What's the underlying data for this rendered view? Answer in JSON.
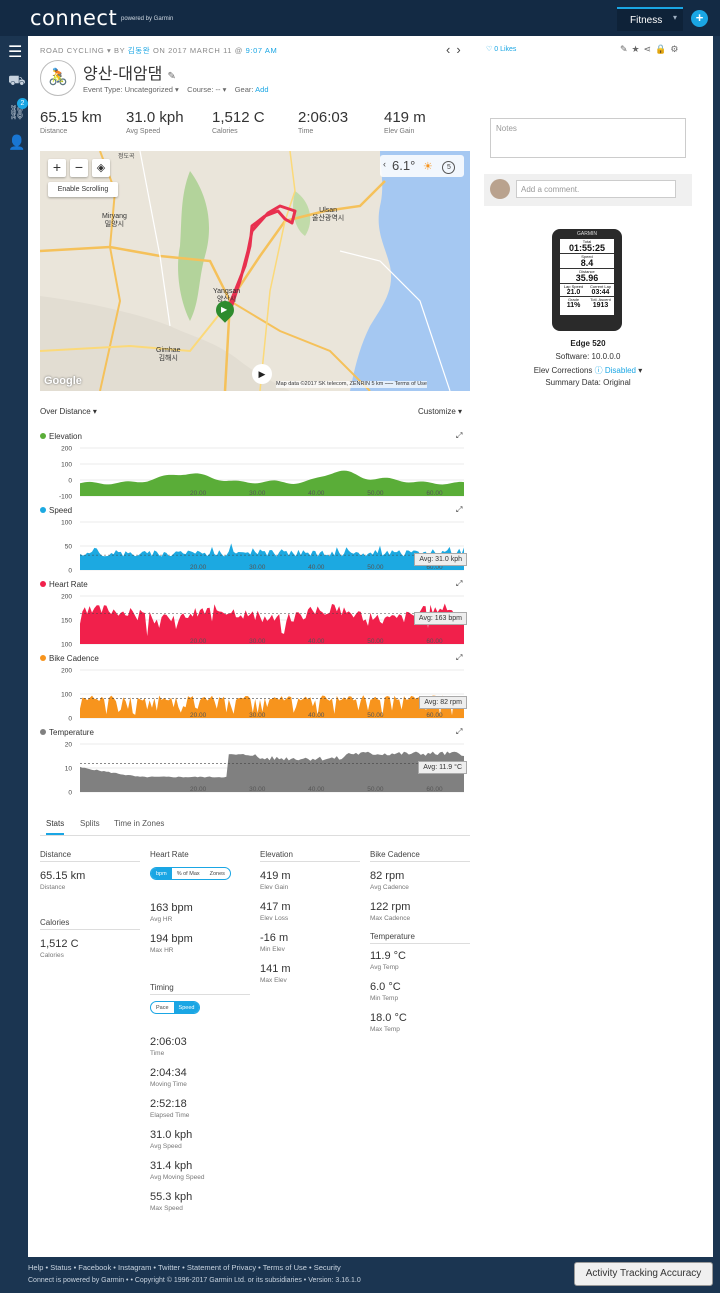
{
  "header": {
    "logo": "connect",
    "logo_sub": "powered by Garmin",
    "fitness_tab": "Fitness"
  },
  "sidebar": {
    "badge": "2"
  },
  "activity": {
    "type": "ROAD CYCLING",
    "by": "BY",
    "author": "김동완",
    "on": "ON 2017 MARCH 11 @",
    "time": "9:07 AM",
    "likes": "0 Likes",
    "title": "양산-대암댐",
    "event_type_label": "Event Type:",
    "event_type": "Uncategorized",
    "course_label": "Course:",
    "course": "--",
    "gear_label": "Gear:",
    "gear_link": "Add"
  },
  "summary": [
    {
      "value": "65.15 km",
      "label": "Distance"
    },
    {
      "value": "31.0 kph",
      "label": "Avg Speed"
    },
    {
      "value": "1,512 C",
      "label": "Calories"
    },
    {
      "value": "2:06:03",
      "label": "Time"
    },
    {
      "value": "419 m",
      "label": "Elev Gain"
    }
  ],
  "map": {
    "weather_temp": "6.1°",
    "weather_badge": "5",
    "enable_scrolling": "Enable Scrolling",
    "labels": {
      "ulsan": "Ulsan\n울산광역시",
      "miryang": "Miryang\n밀양시",
      "yangsan": "Yangsan\n양산시",
      "gimhae": "Gimhae\n김해시",
      "top": "정도곡"
    },
    "credit": "Map data ©2017 SK telecom, ZENRIN    5 km ⎯⎯⎯    Terms of Use",
    "google": "Google"
  },
  "charts_header": {
    "x_axis": "Over Distance",
    "customize": "Customize"
  },
  "chart_data": [
    {
      "type": "area",
      "title": "Elevation",
      "color": "#5aad38",
      "x": [
        20.0,
        30.0,
        40.0,
        50.0,
        60.0
      ],
      "yticks": [
        200,
        100,
        0,
        -100
      ],
      "ylim": [
        -100,
        200
      ]
    },
    {
      "type": "area",
      "title": "Speed",
      "color": "#1ca9e1",
      "x": [
        20.0,
        30.0,
        40.0,
        50.0,
        60.0
      ],
      "yticks": [
        100.0,
        50.0,
        0.0
      ],
      "ylim": [
        0,
        100
      ],
      "avg_label": "Avg: 31.0 kph",
      "avg_value": 31.0
    },
    {
      "type": "area",
      "title": "Heart Rate",
      "color": "#f1204b",
      "x": [
        20.0,
        30.0,
        40.0,
        50.0,
        60.0
      ],
      "yticks": [
        200,
        150,
        100
      ],
      "ylim": [
        100,
        200
      ],
      "avg_label": "Avg: 163 bpm",
      "avg_value": 163
    },
    {
      "type": "area",
      "title": "Bike Cadence",
      "color": "#f7941d",
      "x": [
        20.0,
        30.0,
        40.0,
        50.0,
        60.0
      ],
      "yticks": [
        200,
        100,
        0
      ],
      "ylim": [
        0,
        200
      ],
      "avg_label": "Avg: 82 rpm",
      "avg_value": 82
    },
    {
      "type": "area",
      "title": "Temperature",
      "color": "#808080",
      "x": [
        20.0,
        30.0,
        40.0,
        50.0,
        60.0
      ],
      "yticks": [
        20.0,
        10.0,
        0.0
      ],
      "ylim": [
        0,
        20
      ],
      "avg_label": "Avg: 11.9 °C",
      "avg_value": 11.9
    }
  ],
  "tabs": [
    "Stats",
    "Splits",
    "Time in Zones"
  ],
  "stats": {
    "distance": {
      "heading": "Distance",
      "value": "65.15 km",
      "label": "Distance"
    },
    "calories": {
      "heading": "Calories",
      "value": "1,512 C",
      "label": "Calories"
    },
    "heart_rate": {
      "heading": "Heart Rate",
      "toggle": [
        "bpm",
        "% of Max",
        "Zones"
      ],
      "items": [
        {
          "value": "163 bpm",
          "label": "Avg HR"
        },
        {
          "value": "194 bpm",
          "label": "Max HR"
        }
      ]
    },
    "timing": {
      "heading": "Timing",
      "toggle": [
        "Pace",
        "Speed"
      ],
      "items": [
        {
          "value": "2:06:03",
          "label": "Time"
        },
        {
          "value": "2:04:34",
          "label": "Moving Time"
        },
        {
          "value": "2:52:18",
          "label": "Elapsed Time"
        },
        {
          "value": "31.0 kph",
          "label": "Avg Speed"
        },
        {
          "value": "31.4 kph",
          "label": "Avg Moving Speed"
        },
        {
          "value": "55.3 kph",
          "label": "Max Speed"
        }
      ]
    },
    "elevation": {
      "heading": "Elevation",
      "items": [
        {
          "value": "419 m",
          "label": "Elev Gain"
        },
        {
          "value": "417 m",
          "label": "Elev Loss"
        },
        {
          "value": "-16 m",
          "label": "Min Elev"
        },
        {
          "value": "141 m",
          "label": "Max Elev"
        }
      ]
    },
    "cadence": {
      "heading": "Bike Cadence",
      "items": [
        {
          "value": "82 rpm",
          "label": "Avg Cadence"
        },
        {
          "value": "122 rpm",
          "label": "Max Cadence"
        }
      ]
    },
    "temperature": {
      "heading": "Temperature",
      "items": [
        {
          "value": "11.9 °C",
          "label": "Avg Temp"
        },
        {
          "value": "6.0 °C",
          "label": "Min Temp"
        },
        {
          "value": "18.0 °C",
          "label": "Max Temp"
        }
      ]
    }
  },
  "right": {
    "notes_placeholder": "Notes",
    "comment_placeholder": "Add a comment.",
    "device_name": "Edge 520",
    "software": "Software: 10.0.0.0",
    "elev_label": "Elev Corrections",
    "elev_value": "Disabled",
    "summary_data": "Summary Data: Original",
    "device_screen": {
      "brand": "GARMIN",
      "l1": "Total",
      "v1": "01:55:25",
      "l2": "Speed",
      "v2": "8.4",
      "l3": "Distance",
      "v3": "35.96",
      "l4a": "Lap Speed",
      "l4b": "Current Lap",
      "v4a": "21.0",
      "v4b": "03:44",
      "l5a": "Grade",
      "l5b": "Totl. Ascent",
      "v5a": "11%",
      "v5b": "1913"
    }
  },
  "footer": {
    "links": "Help • Status • Facebook • Instagram • Twitter • Statement of Privacy • Terms of Use • Security",
    "copyright": "Connect is powered by Garmin • • Copyright © 1996-2017 Garmin Ltd. or its subsidiaries • Version: 3.16.1.0",
    "ata_button": "Activity Tracking Accuracy"
  }
}
